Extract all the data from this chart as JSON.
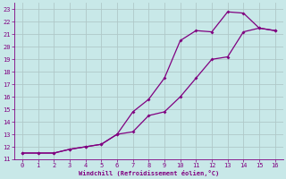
{
  "xlabel": "Windchill (Refroidissement éolien,°C)",
  "line1_x": [
    0,
    1,
    2,
    3,
    4,
    5,
    6,
    7,
    8,
    9,
    10,
    11,
    12,
    13,
    14,
    15,
    16
  ],
  "line1_y": [
    11.5,
    11.5,
    11.5,
    11.8,
    12.0,
    12.2,
    13.0,
    14.8,
    15.8,
    17.5,
    20.5,
    21.3,
    21.2,
    22.8,
    22.7,
    21.5,
    21.3
  ],
  "line2_x": [
    0,
    1,
    2,
    3,
    4,
    5,
    6,
    7,
    8,
    9,
    10,
    11,
    12,
    13,
    14,
    15,
    16
  ],
  "line2_y": [
    11.5,
    11.5,
    11.5,
    11.8,
    12.0,
    12.2,
    13.0,
    13.2,
    14.5,
    14.8,
    16.0,
    17.5,
    19.0,
    19.2,
    21.2,
    21.5,
    21.3
  ],
  "line_color": "#800080",
  "bg_color": "#c8e8e8",
  "grid_color": "#b0c8c8",
  "xlim": [
    -0.5,
    16.5
  ],
  "ylim": [
    11,
    23.5
  ],
  "xticks": [
    0,
    1,
    2,
    3,
    4,
    5,
    6,
    7,
    8,
    9,
    10,
    11,
    12,
    13,
    14,
    15,
    16
  ],
  "yticks": [
    11,
    12,
    13,
    14,
    15,
    16,
    17,
    18,
    19,
    20,
    21,
    22,
    23
  ]
}
